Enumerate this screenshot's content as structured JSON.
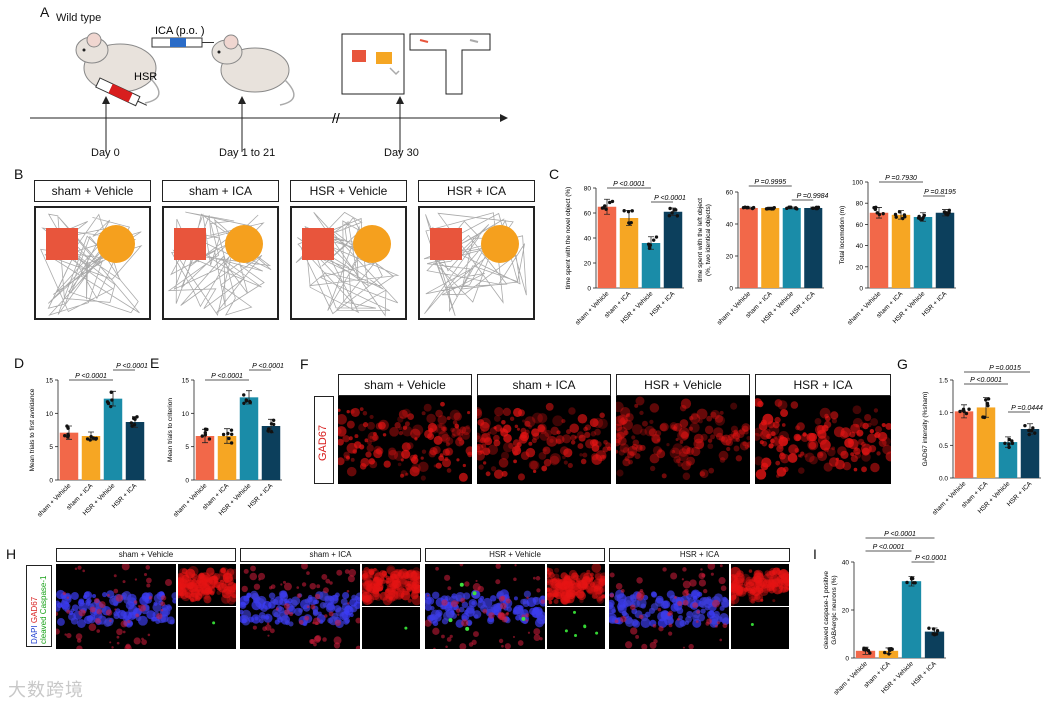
{
  "panels": {
    "A": {
      "letter": "A",
      "wild_type": "Wild type",
      "hsr": "HSR",
      "ica": "ICA (p.o. )",
      "timeline": [
        "Day 0",
        "Day 1 to 21",
        "Day 30"
      ]
    },
    "B": {
      "letter": "B",
      "groups": [
        "sham + Vehicle",
        "sham + ICA",
        "HSR + Vehicle",
        "HSR + ICA"
      ]
    },
    "C": {
      "letter": "C"
    },
    "D": {
      "letter": "D"
    },
    "E": {
      "letter": "E"
    },
    "F": {
      "letter": "F",
      "stain": "GAD67",
      "groups": [
        "sham + Vehicle",
        "sham + ICA",
        "HSR + Vehicle",
        "HSR + ICA"
      ]
    },
    "G": {
      "letter": "G"
    },
    "H": {
      "letter": "H",
      "stain_dapi": "DAPI",
      "stain_gad": "GAD67",
      "stain_casp": "cleaved Caspase-1",
      "groups": [
        "sham + Vehicle",
        "sham + ICA",
        "HSR + Vehicle",
        "HSR + ICA"
      ]
    },
    "I": {
      "letter": "I"
    }
  },
  "colors": {
    "vehicle_sham": "#f26849",
    "ica_sham": "#f6a623",
    "vehicle_hsr": "#1a8ca8",
    "ica_hsr": "#0c3f5c"
  },
  "watermark": "大数跨境",
  "chart_data": [
    {
      "id": "C1",
      "type": "bar",
      "categories": [
        "sham + Vehicle",
        "sham + ICA",
        "HSR + Vehicle",
        "HSR + ICA"
      ],
      "values": [
        65,
        56,
        36,
        61
      ],
      "errors": [
        6,
        6,
        5,
        3
      ],
      "ylabel": "time spent with the novel object (%)",
      "ylim": [
        0,
        80
      ],
      "yticks": [
        0,
        20,
        40,
        60,
        80
      ],
      "comparisons": [
        {
          "from": 0,
          "to": 2,
          "label": "P <0.0001"
        },
        {
          "from": 2,
          "to": 3,
          "label": "P <0.0001"
        }
      ]
    },
    {
      "id": "C2",
      "type": "bar",
      "categories": [
        "sham + Vehicle",
        "sham + ICA",
        "HSR + Vehicle",
        "HSR + ICA"
      ],
      "values": [
        50,
        50,
        50,
        50
      ],
      "errors": [
        0.5,
        0.5,
        0.5,
        0.5
      ],
      "ylabel": "time spent with the left object (%, two identical objects)",
      "ylim": [
        0,
        60
      ],
      "yticks": [
        0,
        20,
        40,
        60
      ],
      "comparisons": [
        {
          "from": 0,
          "to": 2,
          "label": "P =0.9995"
        },
        {
          "from": 2,
          "to": 3,
          "label": "P =0.9984"
        }
      ]
    },
    {
      "id": "C3",
      "type": "bar",
      "categories": [
        "sham + Vehicle",
        "sham + ICA",
        "HSR + Vehicle",
        "HSR + ICA"
      ],
      "values": [
        71,
        69,
        67,
        71
      ],
      "errors": [
        5,
        4,
        4,
        3
      ],
      "ylabel": "Total locomotion (m)",
      "ylim": [
        0,
        100
      ],
      "yticks": [
        0,
        20,
        40,
        60,
        80,
        100
      ],
      "comparisons": [
        {
          "from": 0,
          "to": 2,
          "label": "P =0.7930"
        },
        {
          "from": 2,
          "to": 3,
          "label": "P =0.8195"
        }
      ]
    },
    {
      "id": "D",
      "type": "bar",
      "categories": [
        "sham + Vehicle",
        "sham + ICA",
        "HSR + Vehicle",
        "HSR + ICA"
      ],
      "values": [
        7.1,
        6.6,
        12.2,
        8.7
      ],
      "errors": [
        1.0,
        0.6,
        1.1,
        0.8
      ],
      "ylabel": "Mean trials to first avoidance",
      "ylim": [
        0,
        15
      ],
      "yticks": [
        0,
        5,
        10,
        15
      ],
      "comparisons": [
        {
          "from": 0,
          "to": 2,
          "label": "P <0.0001"
        },
        {
          "from": 2,
          "to": 3,
          "label": "P <0.0001"
        }
      ]
    },
    {
      "id": "E",
      "type": "bar",
      "categories": [
        "sham + Vehicle",
        "sham + ICA",
        "HSR + Vehicle",
        "HSR + ICA"
      ],
      "values": [
        6.6,
        6.6,
        12.4,
        8.1
      ],
      "errors": [
        1.0,
        1.1,
        1.0,
        1.0
      ],
      "ylabel": "Mean trials to criterion",
      "ylim": [
        0,
        15
      ],
      "yticks": [
        0,
        5,
        10,
        15
      ],
      "comparisons": [
        {
          "from": 0,
          "to": 2,
          "label": "P <0.0001"
        },
        {
          "from": 2,
          "to": 3,
          "label": "P <0.0001"
        }
      ]
    },
    {
      "id": "G",
      "type": "bar",
      "categories": [
        "sham + Vehicle",
        "sham + ICA",
        "HSR + Vehicle",
        "HSR + ICA"
      ],
      "values": [
        1.02,
        1.08,
        0.55,
        0.75
      ],
      "errors": [
        0.1,
        0.15,
        0.08,
        0.08
      ],
      "ylabel": "GAD67 intensity (%sham)",
      "ylim": [
        0,
        1.5
      ],
      "yticks": [
        0.0,
        0.5,
        1.0,
        1.5
      ],
      "comparisons": [
        {
          "from": 0,
          "to": 2,
          "label": "P <0.0001"
        },
        {
          "from": 2,
          "to": 3,
          "label": "P =0.0444"
        },
        {
          "from": 0,
          "to": 3,
          "label": "P =0.0015"
        }
      ]
    },
    {
      "id": "I",
      "type": "bar",
      "categories": [
        "sham + Vehicle",
        "sham + ICA",
        "HSR + Vehicle",
        "HSR + ICA"
      ],
      "values": [
        3,
        3,
        32,
        11
      ],
      "errors": [
        1.5,
        1.2,
        2,
        1.5
      ],
      "ylabel": "cleaved caspase-1 positive GABAergic neurons (%)",
      "ylim": [
        0,
        40
      ],
      "yticks": [
        0,
        20,
        40
      ],
      "comparisons": [
        {
          "from": 0,
          "to": 2,
          "label": "P <0.0001"
        },
        {
          "from": 2,
          "to": 3,
          "label": "P <0.0001"
        },
        {
          "from": 0,
          "to": 3,
          "label": "P <0.0001"
        }
      ]
    }
  ]
}
